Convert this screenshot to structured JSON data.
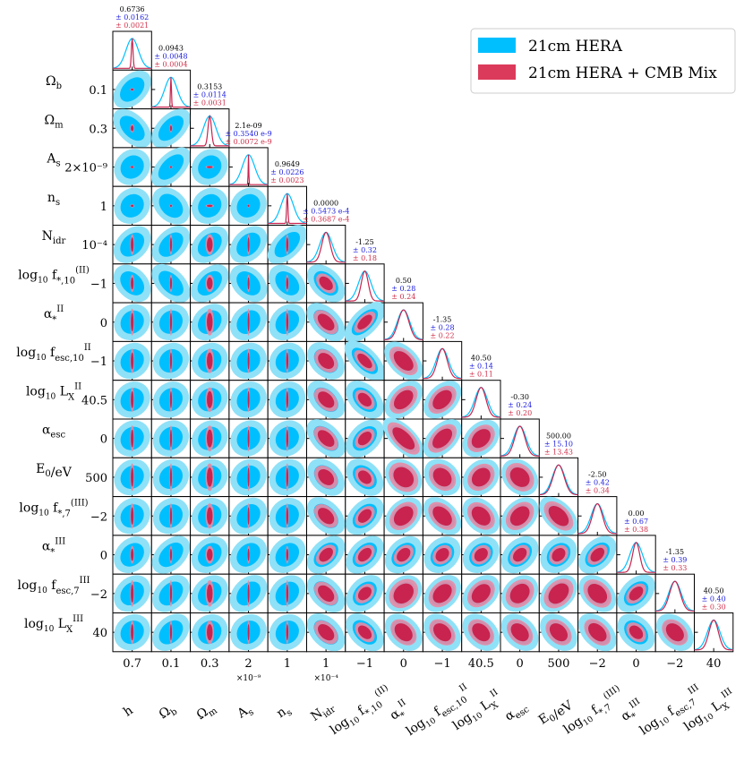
{
  "chart_data": {
    "type": "corner",
    "title": "",
    "colors": {
      "hera_outer": "#8fe1f7",
      "hera_inner": "#00bfff",
      "cmb_outer": "#e88aa4",
      "cmb_inner": "#c8244f",
      "stat_hera": "#2020e0",
      "stat_cmb": "#d0304a"
    },
    "legend": {
      "placement": "top-right",
      "entries": [
        {
          "label": "21cm HERA",
          "color": "#00bfff"
        },
        {
          "label": "21cm HERA + CMB Mix",
          "color": "#dc3a5a"
        }
      ]
    },
    "parameters": [
      {
        "name": "h",
        "row_label": "",
        "col_label": "h",
        "tick": "0.7",
        "exponent": "",
        "mean": "0.6736",
        "err_hera": "± 0.0162",
        "err_cmb": "± 0.0021"
      },
      {
        "name": "Omega_b",
        "row_label": "Ωb",
        "col_label": "Ωb",
        "tick": "0.1",
        "exponent": "",
        "mean": "0.0943",
        "err_hera": "± 0.0048",
        "err_cmb": "± 0.0004"
      },
      {
        "name": "Omega_m",
        "row_label": "Ωm",
        "col_label": "Ωm",
        "tick": "0.3",
        "exponent": "",
        "mean": "0.3153",
        "err_hera": "± 0.0114",
        "err_cmb": "± 0.0031"
      },
      {
        "name": "A_s",
        "row_label": "As",
        "col_label": "As",
        "tick": "2",
        "row_tick": "2×10⁻⁹",
        "exponent": "×10⁻⁹",
        "mean": "2.1e-09",
        "err_hera": "± 0.3540 e-9",
        "err_cmb": "± 0.0072 e-9"
      },
      {
        "name": "n_s",
        "row_label": "ns",
        "col_label": "ns",
        "tick": "1",
        "exponent": "",
        "mean": "0.9649",
        "err_hera": "± 0.0226",
        "err_cmb": "± 0.0023"
      },
      {
        "name": "N_idr",
        "row_label": "Nidr",
        "col_label": "Nidr",
        "tick": "1",
        "row_tick": "10⁻⁴",
        "exponent": "×10⁻⁴",
        "mean": "0.0000",
        "err_hera": "± 0.5473 e-4",
        "err_cmb": "± 0.3687 e-4"
      },
      {
        "name": "log10 f*,10 (II)",
        "row_label": "log10 f(II)*,10",
        "col_label": "log10 f(II)*,10",
        "tick": "−1",
        "exponent": "",
        "mean": "-1.25",
        "err_hera": "± 0.32",
        "err_cmb": "± 0.18"
      },
      {
        "name": "alpha* II",
        "row_label": "αII*",
        "col_label": "αII*",
        "tick": "0",
        "exponent": "",
        "mean": "0.50",
        "err_hera": "± 0.28",
        "err_cmb": "± 0.24"
      },
      {
        "name": "log10 fesc,10 II",
        "row_label": "log10 fIIesc,10",
        "col_label": "log10 fIIesc,10",
        "tick": "−1",
        "exponent": "",
        "mean": "-1.35",
        "err_hera": "± 0.28",
        "err_cmb": "± 0.22"
      },
      {
        "name": "log10 LX II",
        "row_label": "log10 LIIX",
        "col_label": "log10 LIIX",
        "tick": "40.5",
        "exponent": "",
        "mean": "40.50",
        "err_hera": "± 0.14",
        "err_cmb": "± 0.11"
      },
      {
        "name": "alpha_esc",
        "row_label": "αesc",
        "col_label": "αesc",
        "tick": "0",
        "exponent": "",
        "mean": "-0.30",
        "err_hera": "± 0.24",
        "err_cmb": "± 0.20"
      },
      {
        "name": "E0/eV",
        "row_label": "E0/eV",
        "col_label": "E0/eV",
        "tick": "500",
        "exponent": "",
        "mean": "500.00",
        "err_hera": "± 15.10",
        "err_cmb": "± 13.43"
      },
      {
        "name": "log10 f*,7 (III)",
        "row_label": "log10 f(III)*,7",
        "col_label": "log10 f(III)*,7",
        "tick": "−2",
        "exponent": "",
        "mean": "-2.50",
        "err_hera": "± 0.42",
        "err_cmb": "± 0.34"
      },
      {
        "name": "alpha* III",
        "row_label": "αIII*",
        "col_label": "αIII*",
        "tick": "0",
        "exponent": "",
        "mean": "0.00",
        "err_hera": "± 0.67",
        "err_cmb": "± 0.38"
      },
      {
        "name": "log10 fesc,7 III",
        "row_label": "log10 fIIIesc,7",
        "col_label": "log10 fIIIesc,7",
        "tick": "−2",
        "exponent": "",
        "mean": "-1.35",
        "err_hera": "± 0.39",
        "err_cmb": "± 0.33"
      },
      {
        "name": "log10 LX III",
        "row_label": "log10 LIIIX",
        "col_label": "log10 LIIIX",
        "tick": "40",
        "exponent": "",
        "mean": "40.50",
        "err_hera": "± 0.40",
        "err_cmb": "± 0.30"
      }
    ],
    "row_label_parts": [
      null,
      {
        "base": "Ω",
        "sub": "b"
      },
      {
        "base": "Ω",
        "sub": "m"
      },
      {
        "base": "A",
        "sub": "s"
      },
      {
        "base": "n",
        "sub": "s"
      },
      {
        "base": "N",
        "sub": "idr"
      },
      {
        "pre": "log",
        "presub": "10",
        "base": " f",
        "sub": "*,10",
        "sup": "(II)"
      },
      {
        "base": "α",
        "sub": "*",
        "sup": "II"
      },
      {
        "pre": "log",
        "presub": "10",
        "base": " f",
        "sub": "esc,10",
        "sup": "II"
      },
      {
        "pre": "log",
        "presub": "10",
        "base": " L",
        "sub": "X",
        "sup": "II"
      },
      {
        "base": "α",
        "sub": "esc"
      },
      {
        "base": "E",
        "sub": "0",
        "post": "/eV"
      },
      {
        "pre": "log",
        "presub": "10",
        "base": " f",
        "sub": "*,7",
        "sup": "(III)"
      },
      {
        "base": "α",
        "sub": "*",
        "sup": "III"
      },
      {
        "pre": "log",
        "presub": "10",
        "base": " f",
        "sub": "esc,7",
        "sup": "III"
      },
      {
        "pre": "log",
        "presub": "10",
        "base": " L",
        "sub": "X",
        "sup": "III"
      }
    ],
    "width_ratio_cmb_to_hera": [
      0.13,
      0.08,
      0.27,
      0.02,
      0.1,
      0.67,
      0.56,
      0.86,
      0.79,
      0.79,
      0.83,
      0.89,
      0.81,
      0.57,
      0.85,
      0.75
    ],
    "correlations": [
      [],
      [
        0.4
      ],
      [
        -0.5,
        0.55
      ],
      [
        0.1,
        0.6,
        0.1
      ],
      [
        0.1,
        -0.3,
        0.1,
        0.1
      ],
      [
        0.3,
        0.4,
        0.3,
        0.3,
        0.6
      ],
      [
        -0.3,
        -0.5,
        0.4,
        -0.3,
        -0.3,
        -0.4
      ],
      [
        0.1,
        0.1,
        0.2,
        0.2,
        0.2,
        -0.5,
        0.75
      ],
      [
        0.1,
        0.1,
        0.1,
        0.1,
        0.1,
        -0.3,
        -0.75,
        -0.5
      ],
      [
        0.1,
        0.1,
        0.1,
        0.1,
        0.1,
        -0.4,
        -0.4,
        0.4,
        0.4
      ],
      [
        0.1,
        0.1,
        0.1,
        0.1,
        0.1,
        -0.5,
        0.4,
        -0.85,
        0.5,
        0.3
      ],
      [
        0.1,
        0.1,
        0.1,
        0.1,
        0.1,
        -0.3,
        -0.3,
        -0.2,
        -0.2,
        0.2,
        -0.2
      ],
      [
        0.1,
        0.1,
        0.1,
        0.2,
        0.1,
        -0.4,
        0.4,
        0.3,
        -0.4,
        -0.3,
        0.3,
        -0.5
      ],
      [
        0.2,
        0.4,
        0.2,
        0.2,
        0.2,
        0.4,
        0.4,
        0.3,
        0.2,
        0.2,
        0.3,
        0.2,
        0.4
      ],
      [
        0.2,
        0.3,
        0.2,
        0.3,
        0.2,
        -0.4,
        0.3,
        0.2,
        0.3,
        0.3,
        0.2,
        0.3,
        -0.3,
        0.4
      ],
      [
        0.1,
        0.3,
        0.1,
        0.1,
        0.1,
        -0.4,
        -0.4,
        -0.3,
        -0.3,
        -0.3,
        -0.3,
        -0.3,
        -0.4,
        -0.3,
        -0.3
      ]
    ]
  }
}
